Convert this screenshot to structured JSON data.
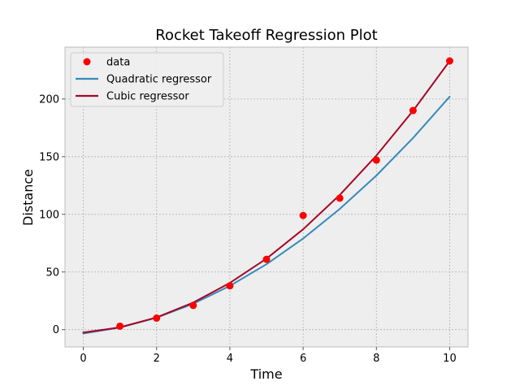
{
  "chart_data": {
    "type": "scatter",
    "title": "Rocket Takeoff Regression Plot",
    "xlabel": "Time",
    "ylabel": "Distance",
    "xlim": [
      -0.5,
      10.5
    ],
    "ylim": [
      -15,
      245
    ],
    "xticks": [
      0,
      2,
      4,
      6,
      8,
      10
    ],
    "yticks": [
      0,
      50,
      100,
      150,
      200
    ],
    "grid": true,
    "legend_position": "top-left",
    "series": [
      {
        "name": "data",
        "kind": "scatter",
        "color": "#ff0000",
        "x": [
          1,
          2,
          3,
          4,
          5,
          6,
          7,
          8,
          9,
          10
        ],
        "y": [
          3,
          10,
          21,
          38,
          61,
          99,
          114,
          147,
          190,
          233
        ]
      },
      {
        "name": "Quadratic regressor",
        "kind": "line",
        "color": "#348abd",
        "x": [
          0,
          1,
          2,
          3,
          4,
          5,
          6,
          7,
          8,
          9,
          10
        ],
        "y": [
          -3.4,
          1.8,
          10.4,
          22.4,
          37.9,
          56.7,
          79.0,
          104.7,
          133.7,
          166.2,
          202.1
        ]
      },
      {
        "name": "Cubic regressor",
        "kind": "line",
        "color": "#a60628",
        "x": [
          0,
          1,
          2,
          3,
          4,
          5,
          6,
          7,
          8,
          9,
          10
        ],
        "y": [
          -2.5,
          2.0,
          10.6,
          23.5,
          40.5,
          61.6,
          87.0,
          116.8,
          151.0,
          189.8,
          233.0
        ]
      }
    ]
  }
}
